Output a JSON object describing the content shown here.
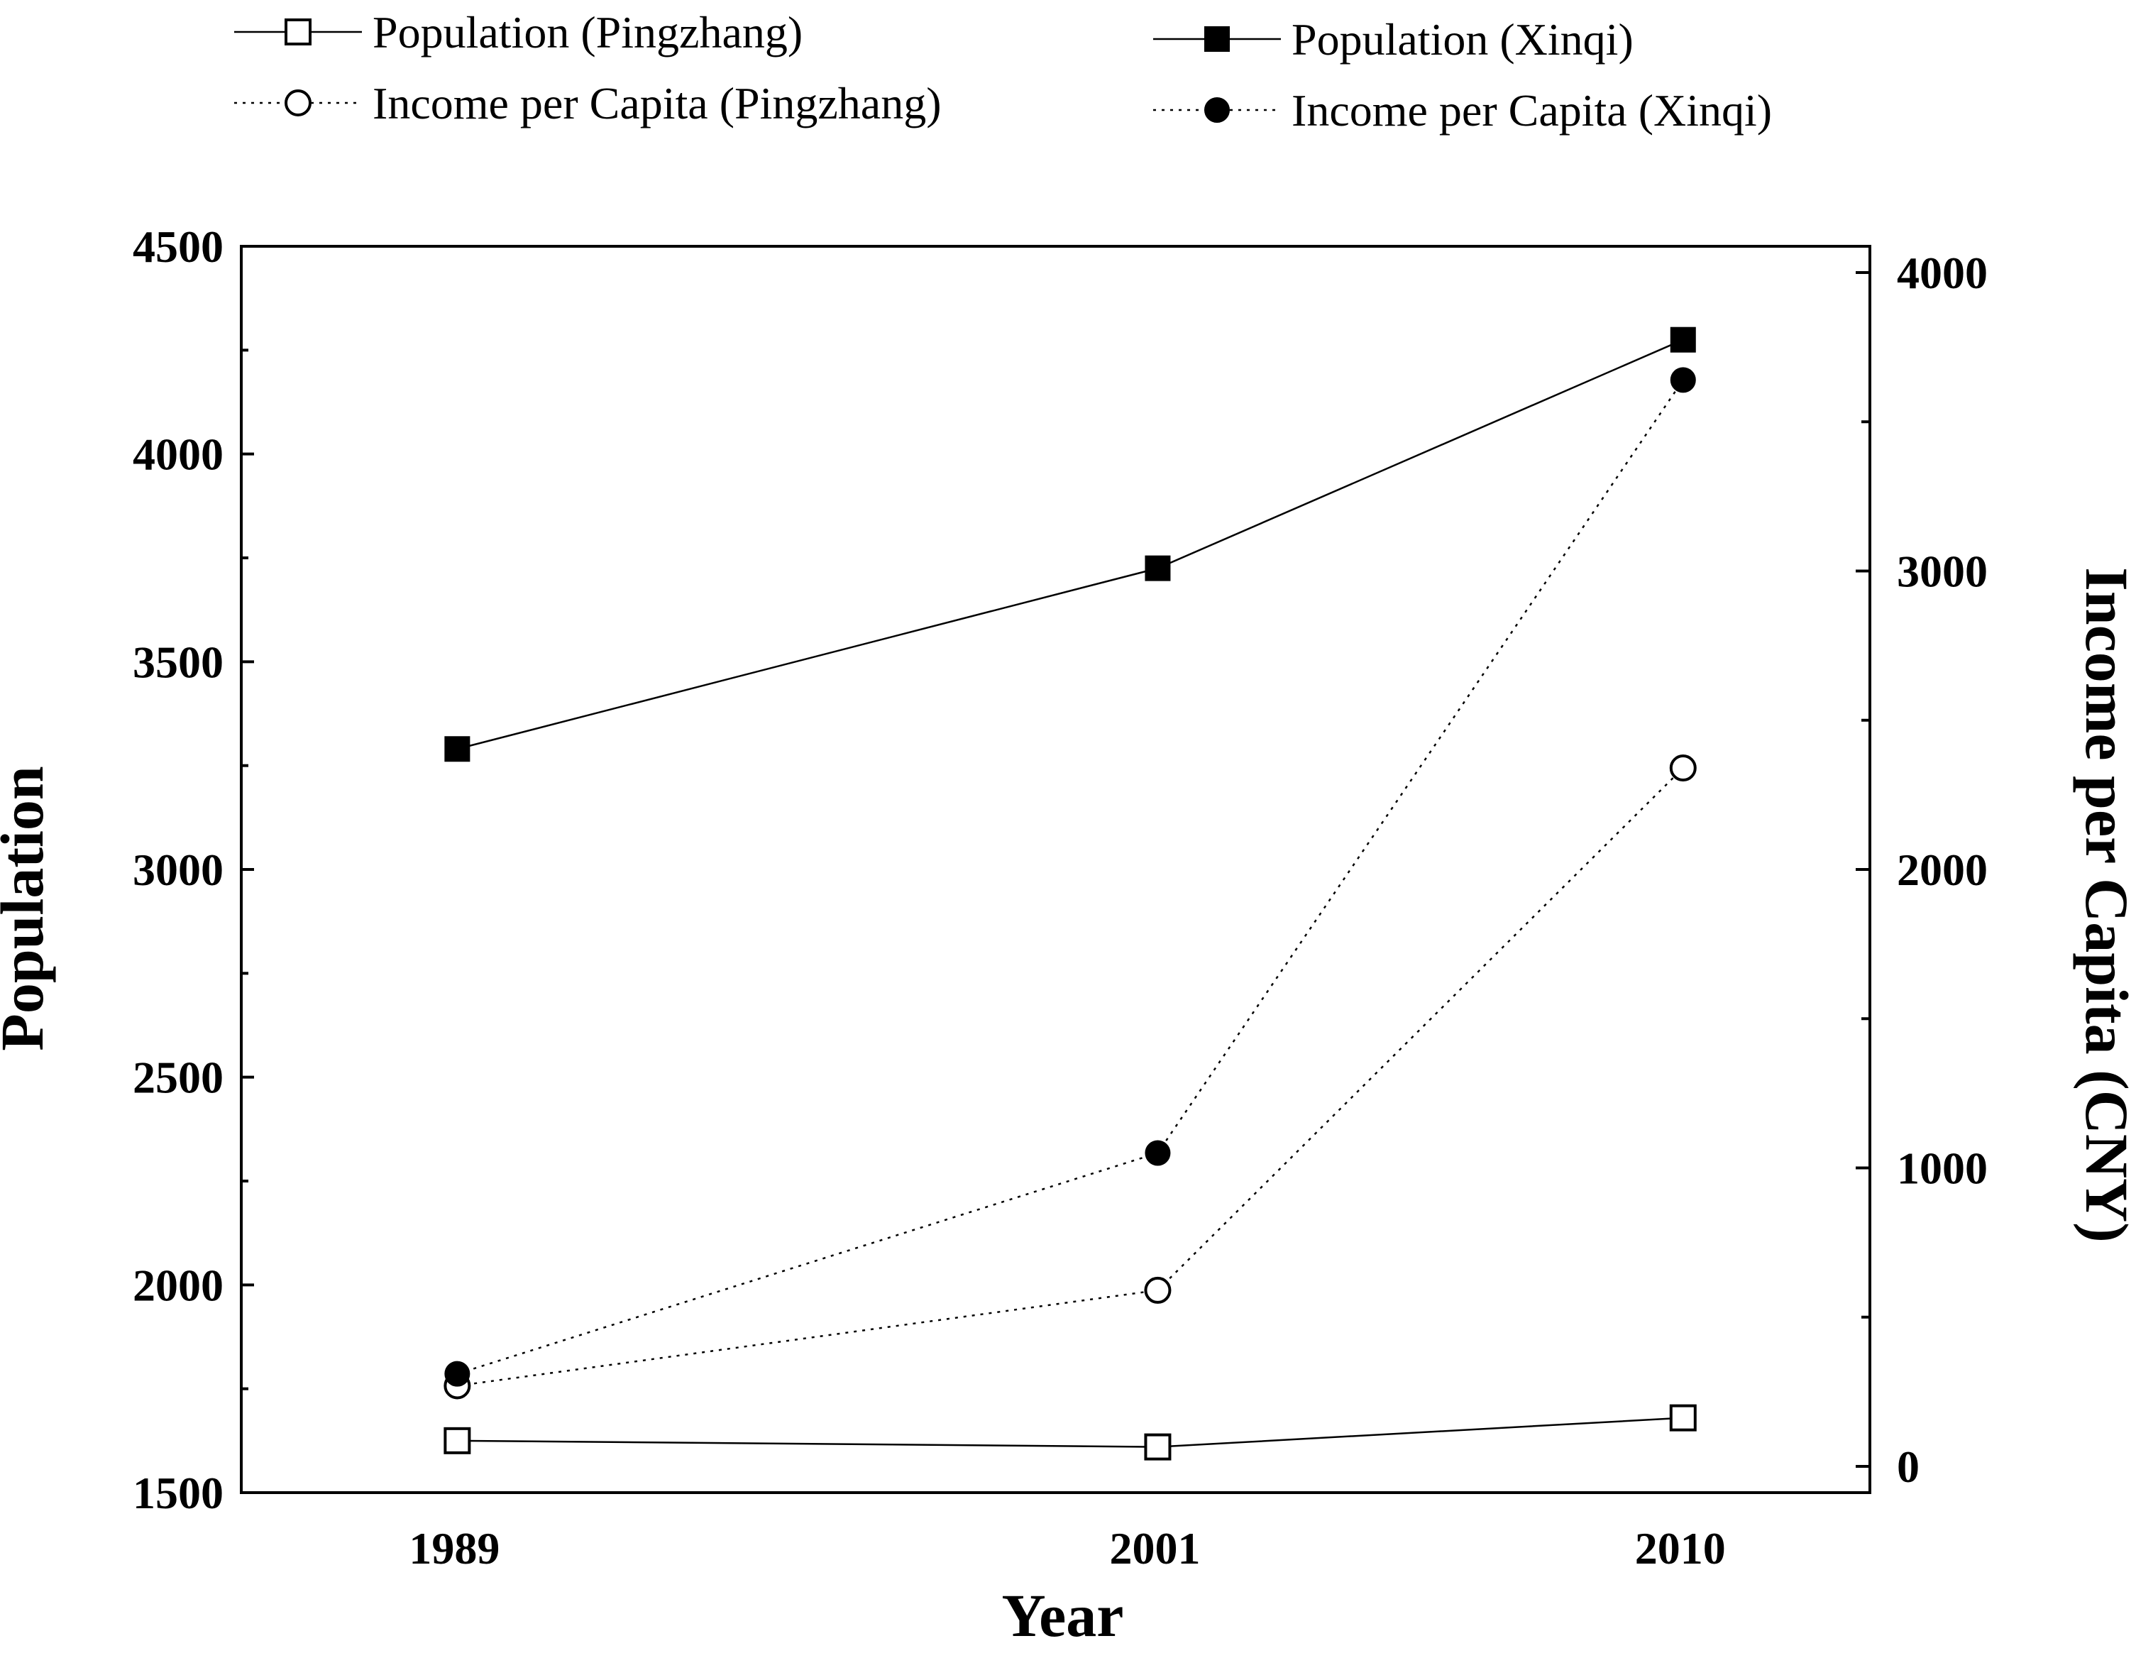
{
  "chart_data": {
    "type": "line",
    "categories": [
      "1989",
      "2001",
      "2010"
    ],
    "x": [
      1989,
      2001,
      2010
    ],
    "xlim": [
      1985.3,
      2013.2
    ],
    "xlabel": "Year",
    "y_left": {
      "label": "Population",
      "range": [
        1500,
        4500
      ],
      "ticks": [
        1500,
        2000,
        2500,
        3000,
        3500,
        4000,
        4500
      ]
    },
    "y_right": {
      "label": "Income per Capita (CNY)",
      "range": [
        -88,
        4088
      ],
      "ticks": [
        0,
        1000,
        2000,
        3000,
        4000
      ]
    },
    "series": [
      {
        "name": "Population (Pingzhang)",
        "axis": "left",
        "values": [
          1625,
          1610,
          1680
        ],
        "marker": "square-open",
        "line": "solid"
      },
      {
        "name": "Population (Xinqi)",
        "axis": "left",
        "values": [
          3290,
          3725,
          4275
        ],
        "marker": "square-filled",
        "line": "solid"
      },
      {
        "name": "Income per Capita (Pingzhang)",
        "axis": "right",
        "values": [
          270,
          590,
          2340
        ],
        "marker": "circle-open",
        "line": "dotted"
      },
      {
        "name": "Income per Capita (Xinqi)",
        "axis": "right",
        "values": [
          310,
          1050,
          3640
        ],
        "marker": "circle-filled",
        "line": "dotted"
      }
    ],
    "legend_position": "top",
    "colors": {
      "line": "#000000",
      "background": "#ffffff"
    }
  }
}
